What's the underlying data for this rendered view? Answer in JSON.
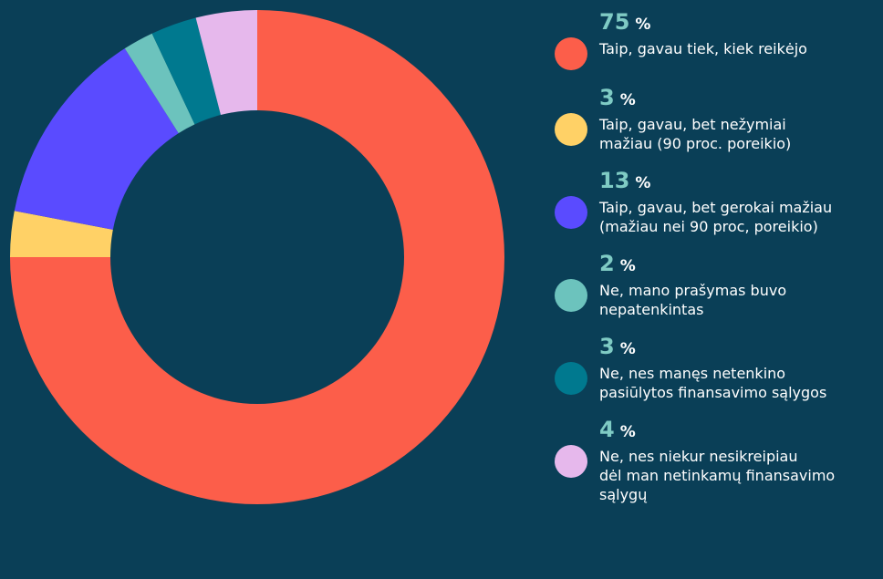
{
  "chart_data": {
    "type": "donut",
    "categories": [
      "Taip, gavau tiek, kiek reikėjo",
      "Taip, gavau, bet nežymiai\nmažiau (90 proc. poreikio)",
      "Taip, gavau, bet gerokai mažiau\n(mažiau nei 90 proc, poreikio)",
      "Ne, mano prašymas buvo\nnepatenkintas",
      "Ne,  nes manęs netenkino\npasiūlytos  finansavimo sąlygos",
      "Ne, nes niekur nesikreipiau\ndėl man netinkamų finansavimo\nsąlygų"
    ],
    "values": [
      75,
      3,
      13,
      2,
      3,
      4
    ],
    "unit": "%",
    "colors": [
      "#fc5e4a",
      "#ffd166",
      "#5a4bff",
      "#6cc3bd",
      "#00798f",
      "#e6b8ec"
    ]
  }
}
